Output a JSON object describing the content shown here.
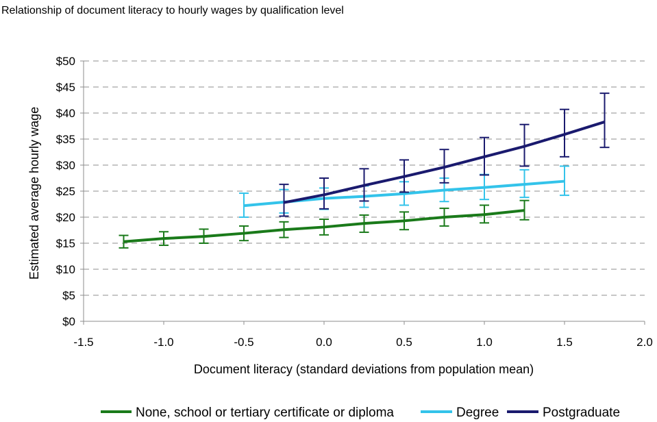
{
  "chart_data": {
    "type": "line",
    "title": "Relationship of document literacy to hourly wages by qualification level",
    "xlabel": "Document literacy (standard deviations from population mean)",
    "ylabel": "Estimated average hourly wage",
    "xlim": [
      -1.5,
      2.0
    ],
    "ylim": [
      0,
      50
    ],
    "x_ticks": [
      -1.5,
      -1.0,
      -0.5,
      0.0,
      0.5,
      1.0,
      1.5,
      2.0
    ],
    "x_tick_labels": [
      "-1.5",
      "-1.0",
      "-0.5",
      "0.0",
      "0.5",
      "1.0",
      "1.5",
      "2.0"
    ],
    "y_ticks": [
      0,
      5,
      10,
      15,
      20,
      25,
      30,
      35,
      40,
      45,
      50
    ],
    "y_tick_labels": [
      "$0",
      "$5",
      "$10",
      "$15",
      "$20",
      "$25",
      "$30",
      "$35",
      "$40",
      "$45",
      "$50"
    ],
    "grid": "horizontal dashed",
    "legend_position": "bottom",
    "error_bars": true,
    "series": [
      {
        "name": "None, school or tertiary certificate or diploma",
        "color": "#1a7a1a",
        "x": [
          -1.25,
          -1.0,
          -0.75,
          -0.5,
          -0.25,
          0.0,
          0.25,
          0.5,
          0.75,
          1.0,
          1.25
        ],
        "y": [
          15.3,
          15.9,
          16.3,
          16.9,
          17.6,
          18.1,
          18.8,
          19.3,
          20.0,
          20.5,
          21.3
        ],
        "err_low": [
          14.1,
          14.6,
          15.0,
          15.5,
          16.1,
          16.6,
          17.1,
          17.6,
          18.3,
          18.9,
          19.5
        ],
        "err_high": [
          16.5,
          17.2,
          17.7,
          18.3,
          19.1,
          19.6,
          20.4,
          21.0,
          21.7,
          22.3,
          23.2
        ]
      },
      {
        "name": "Degree",
        "color": "#33c3ea",
        "x": [
          -0.5,
          -0.25,
          0.0,
          0.25,
          0.5,
          0.75,
          1.0,
          1.25,
          1.5
        ],
        "y": [
          22.2,
          22.9,
          23.6,
          24.0,
          24.5,
          25.2,
          25.7,
          26.3,
          26.9
        ],
        "err_low": [
          20.0,
          20.8,
          21.5,
          21.9,
          22.3,
          23.0,
          23.4,
          23.8,
          24.2
        ],
        "err_high": [
          24.6,
          25.3,
          25.6,
          26.0,
          26.8,
          27.5,
          28.2,
          29.1,
          29.8
        ]
      },
      {
        "name": "Postgraduate",
        "color": "#1a1a6e",
        "x": [
          -0.25,
          0.0,
          0.25,
          0.5,
          0.75,
          1.0,
          1.25,
          1.5,
          1.75
        ],
        "y": [
          22.8,
          24.3,
          26.1,
          27.8,
          29.6,
          31.6,
          33.6,
          35.9,
          38.3
        ],
        "err_low": [
          20.2,
          21.6,
          23.1,
          24.8,
          26.6,
          28.1,
          29.8,
          31.6,
          33.4
        ],
        "err_high": [
          26.3,
          27.5,
          29.3,
          31.0,
          33.0,
          35.3,
          37.8,
          40.7,
          43.8
        ]
      }
    ]
  }
}
